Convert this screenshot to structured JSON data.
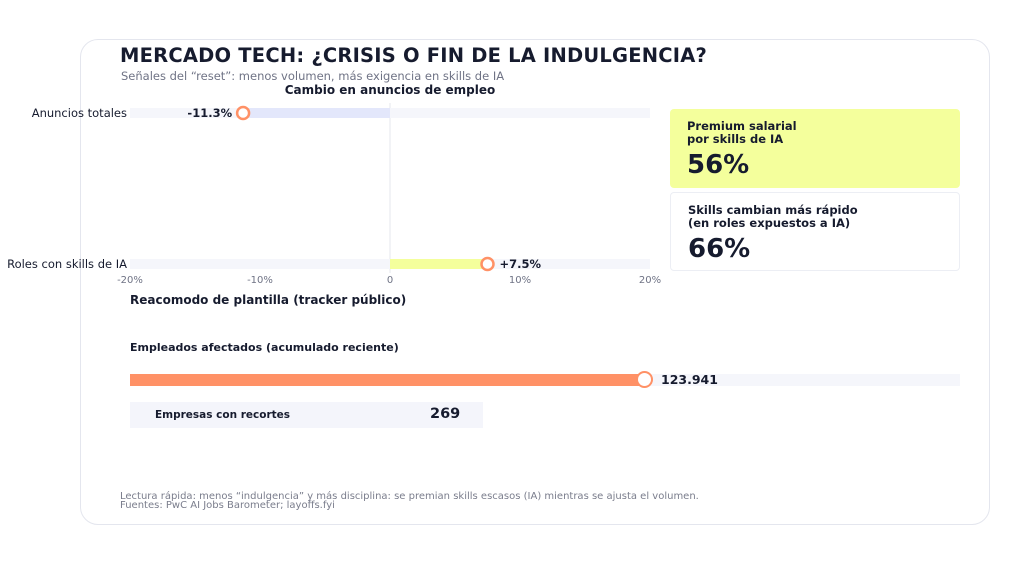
{
  "header": {
    "title": "MERCADO TECH: ¿CRISIS O FIN DE LA INDULGENCIA?",
    "subtitle": "Señales del “reset”: menos volumen, más exigencia en skills de IA"
  },
  "colors": {
    "accent_orange": "#ff9166",
    "accent_yellow": "#f4ff9c",
    "bar_lavender": "#e3e7fb",
    "track": "#f5f6fb",
    "text_dark": "#161b2e",
    "text_muted": "#6f7385"
  },
  "chart_data": [
    {
      "type": "bar",
      "orientation": "horizontal",
      "title": "Cambio en anuncios de empleo",
      "categories": [
        "Anuncios totales",
        "Roles con skills de IA"
      ],
      "values": [
        -11.3,
        7.5
      ],
      "value_labels": [
        "-11.3%",
        "+7.5%"
      ],
      "xlim": [
        -20,
        20
      ],
      "xticks": [
        "-20%",
        "-10%",
        "0",
        "10%",
        "20%"
      ],
      "grid": false,
      "legend": "none"
    },
    {
      "type": "bar",
      "orientation": "horizontal",
      "title": "Empleados afectados (acumulado reciente)",
      "values": [
        123941
      ],
      "value_label": "123.941"
    }
  ],
  "kpis": [
    {
      "label": "Premium salarial\npor skills de IA",
      "value": "56%"
    },
    {
      "label": "Skills cambian más rápido\n(en roles expuestos a IA)",
      "value": "66%"
    }
  ],
  "workforce": {
    "section_title": "Reacomodo de plantilla (tracker público)",
    "employees_title": "Empleados afectados (acumulado reciente)",
    "employees_value": "123.941",
    "employees_fill": 0.62,
    "companies_label": "Empresas con recortes",
    "companies_value": "269"
  },
  "footer": {
    "reading": "Lectura rápida: menos “indulgencia” y más disciplina: se premian skills escasos (IA) mientras se ajusta el volumen.",
    "sources": "Fuentes: PwC AI Jobs Barometer; layoffs.fyi"
  }
}
